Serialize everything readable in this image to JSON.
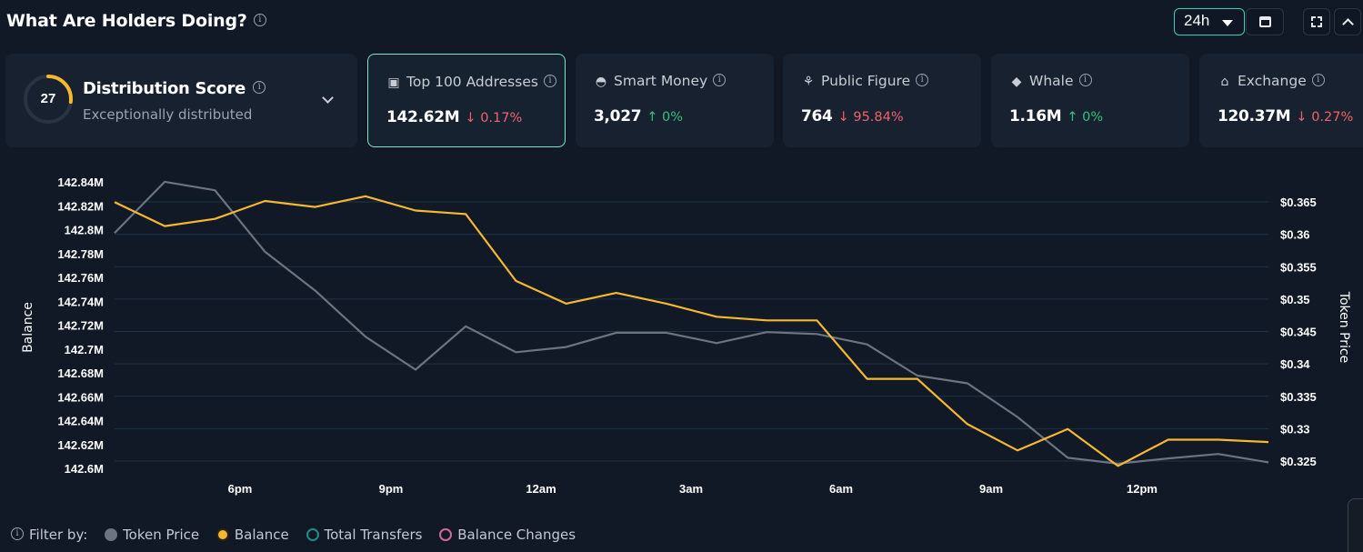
{
  "header": {
    "title": "What Are Holders Doing?",
    "period": "24h"
  },
  "distribution": {
    "score": "27",
    "score_value": 27,
    "score_max": 100,
    "title": "Distribution Score",
    "subtitle": "Exceptionally distributed",
    "gauge_color": "#f5b82e"
  },
  "cards": [
    {
      "icon": "top-addresses-icon",
      "label": "Top 100 Addresses",
      "value": "142.62M",
      "change": "0.17%",
      "direction": "down",
      "selected": true
    },
    {
      "icon": "smart-money-icon",
      "label": "Smart Money",
      "value": "3,027",
      "change": "0%",
      "direction": "up",
      "selected": false
    },
    {
      "icon": "public-figure-icon",
      "label": "Public Figure",
      "value": "764",
      "change": "95.84%",
      "direction": "down",
      "selected": false
    },
    {
      "icon": "whale-icon",
      "label": "Whale",
      "value": "1.16M",
      "change": "0%",
      "direction": "up",
      "selected": false
    },
    {
      "icon": "exchange-icon",
      "label": "Exchange",
      "value": "120.37M",
      "change": "0.27%",
      "direction": "down",
      "selected": false
    }
  ],
  "chart_data": {
    "type": "line",
    "ylabel_left": "Balance",
    "ylabel_right": "Token Price",
    "x_ticks": [
      "6pm",
      "9pm",
      "12am",
      "3am",
      "6am",
      "9am",
      "12pm"
    ],
    "y_left_ticks": [
      "142.84M",
      "142.82M",
      "142.8M",
      "142.78M",
      "142.76M",
      "142.74M",
      "142.72M",
      "142.7M",
      "142.68M",
      "142.66M",
      "142.64M",
      "142.62M",
      "142.6M"
    ],
    "y_left_range": [
      142.6,
      142.84
    ],
    "y_right_ticks": [
      "$0.365",
      "$0.36",
      "$0.355",
      "$0.35",
      "$0.345",
      "$0.34",
      "$0.335",
      "$0.33",
      "$0.325"
    ],
    "y_right_range": [
      0.325,
      0.365
    ],
    "grid": true,
    "series": [
      {
        "name": "Balance",
        "axis": "left",
        "color": "#f5b82e",
        "values": [
          142.823,
          142.803,
          142.809,
          142.824,
          142.819,
          142.828,
          142.816,
          142.813,
          142.757,
          142.738,
          142.747,
          142.738,
          142.727,
          142.724,
          142.724,
          142.675,
          142.675,
          142.637,
          142.615,
          142.633,
          142.602,
          142.624,
          142.624,
          142.622
        ]
      },
      {
        "name": "Token Price",
        "axis": "right",
        "color": "#6b7480",
        "values": [
          0.3602,
          0.3681,
          0.3668,
          0.3573,
          0.3513,
          0.3442,
          0.3391,
          0.3458,
          0.3418,
          0.3426,
          0.3448,
          0.3448,
          0.3432,
          0.3449,
          0.3446,
          0.343,
          0.3382,
          0.337,
          0.3318,
          0.3255,
          0.3246,
          0.3254,
          0.3261,
          0.3248
        ]
      }
    ]
  },
  "legend": {
    "filter_label": "Filter by:",
    "items": [
      {
        "label": "Token Price",
        "color": "#6b7480",
        "style": "fill"
      },
      {
        "label": "Balance",
        "color": "#f5b82e",
        "style": "ring"
      },
      {
        "label": "Total Transfers",
        "color": "#1f8f86",
        "style": "ring-empty"
      },
      {
        "label": "Balance Changes",
        "color": "#d06a9b",
        "style": "ring-empty"
      }
    ]
  }
}
